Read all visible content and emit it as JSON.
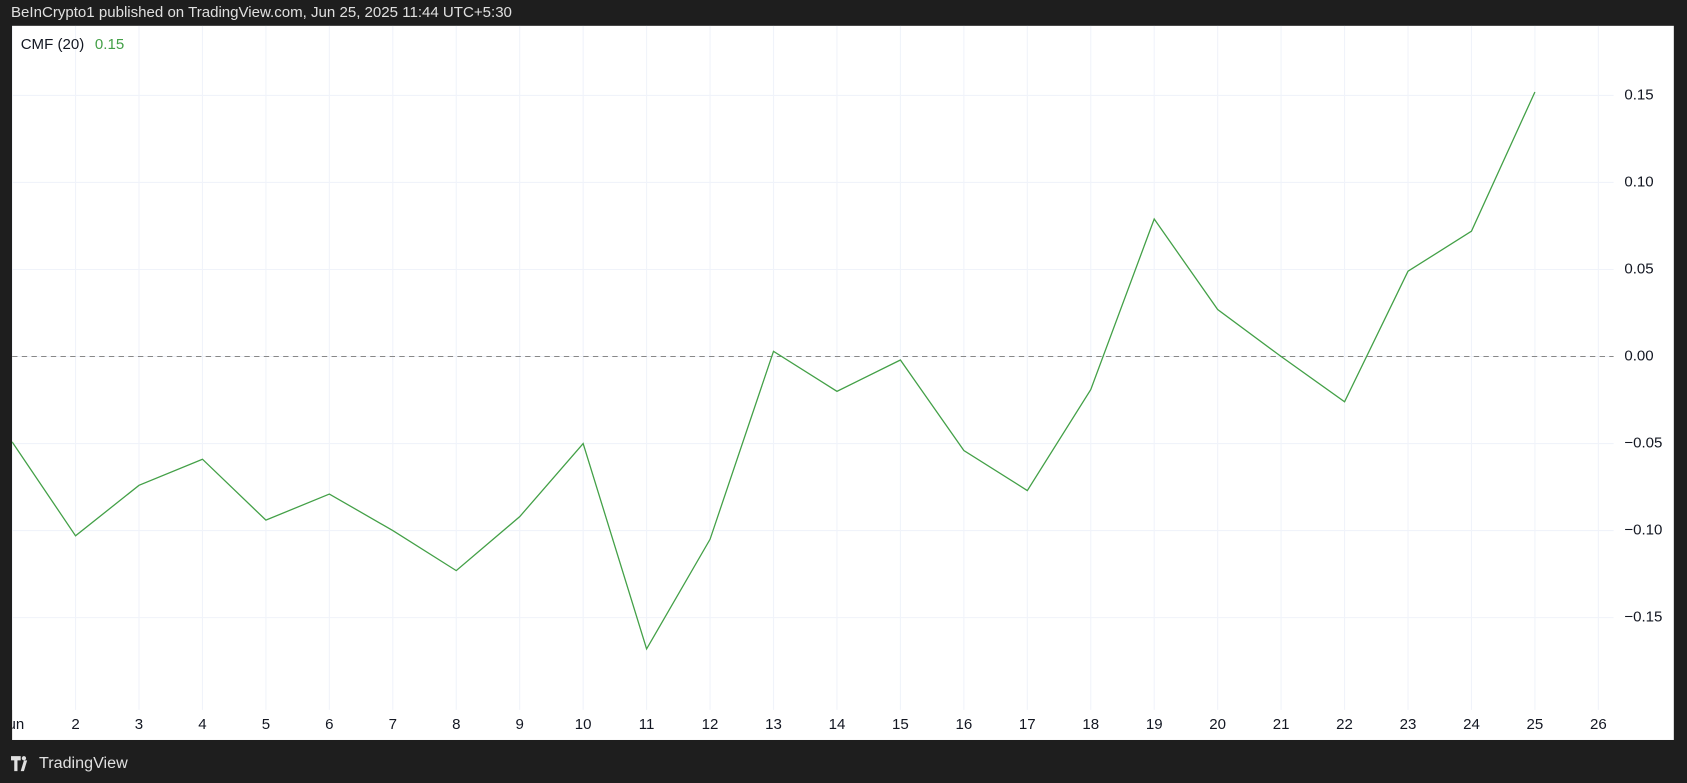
{
  "header": {
    "text": "BeInCrypto1 published on TradingView.com, Jun 25, 2025 11:44 UTC+5:30"
  },
  "footer": {
    "brand": "TradingView"
  },
  "chart_data": {
    "type": "line",
    "legend_value": 0.15,
    "x": [
      1,
      2,
      3,
      4,
      5,
      6,
      7,
      8,
      9,
      10,
      11,
      12,
      13,
      14,
      15,
      16,
      17,
      18,
      19,
      20,
      21,
      22,
      23,
      24,
      25
    ],
    "series": [
      {
        "name": "CMF (20)",
        "color": "#43a047",
        "values": [
          -0.049,
          -0.103,
          -0.074,
          -0.059,
          -0.094,
          -0.079,
          -0.1,
          -0.123,
          -0.092,
          -0.05,
          -0.168,
          -0.105,
          0.003,
          -0.02,
          -0.002,
          -0.054,
          -0.077,
          -0.019,
          0.079,
          0.027,
          0,
          -0.026,
          0.049,
          0.072,
          0.152
        ]
      }
    ],
    "xlim": [
      1,
      26.24
    ],
    "xticks": [
      {
        "value": 1,
        "label": "Jun"
      },
      2,
      3,
      4,
      5,
      6,
      7,
      8,
      9,
      10,
      11,
      12,
      13,
      14,
      15,
      16,
      17,
      18,
      19,
      20,
      21,
      22,
      23,
      24,
      25,
      26
    ],
    "ylim": [
      -0.203,
      0.19
    ],
    "yticks": [
      0.15,
      {
        "value": 0.1,
        "label": "0.10"
      },
      0.05,
      {
        "value": 0,
        "label": "0.00"
      },
      {
        "value": -0.05,
        "label": "−0.05"
      },
      {
        "value": -0.1,
        "label": "−0.10"
      },
      {
        "value": -0.15,
        "label": "−0.15"
      }
    ],
    "baseline": 0,
    "grid": true
  }
}
